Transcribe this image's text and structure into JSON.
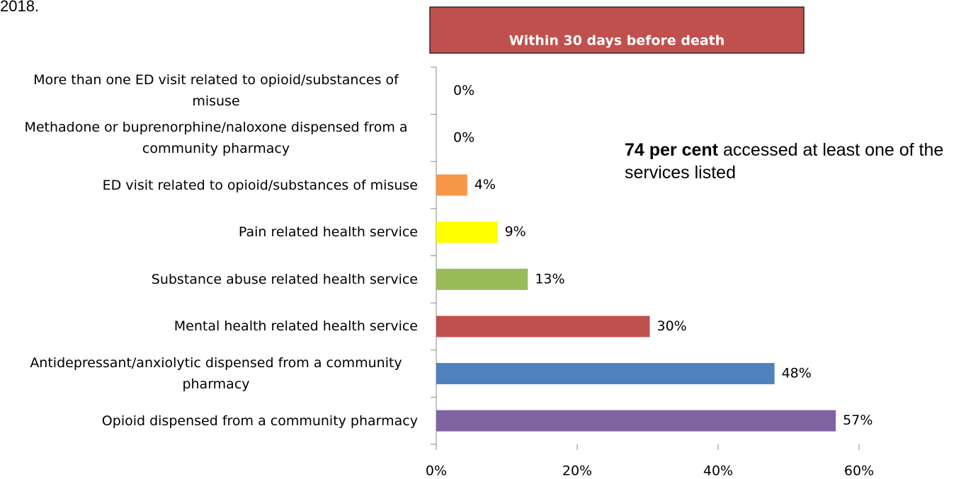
{
  "chart_data": {
    "type": "barh",
    "caption_fragment": "2018.",
    "header": "Within 30 days before death",
    "annotation": {
      "bold": "74 per cent",
      "rest": "accessed at least one of the services listed"
    },
    "categories": [
      "More than one ED visit related to opioid/substances of misuse",
      "Methadone or buprenorphine/naloxone dispensed from a community pharmacy",
      "ED visit related to opioid/substances of misuse",
      "Pain related health service",
      "Substance abuse related health service",
      "Mental health related health service",
      "Antidepressant/anxiolytic dispensed from a community pharmacy",
      "Opioid dispensed from a community pharmacy"
    ],
    "values": [
      0,
      0,
      4.4,
      8.7,
      13,
      30.3,
      48,
      56.7
    ],
    "value_labels": [
      "0%",
      "0%",
      "4%",
      "9%",
      "13%",
      "30%",
      "48%",
      "57%"
    ],
    "colors": [
      "#4f81bd",
      "#4f81bd",
      "#f79646",
      "#ffff00",
      "#9bbb59",
      "#c0504d",
      "#4f81bd",
      "#8064a2"
    ],
    "xlim": [
      0,
      60
    ],
    "xticks": [
      {
        "value": 0,
        "label": "0%"
      },
      {
        "value": 20,
        "label": "20%"
      },
      {
        "value": 40,
        "label": "40%"
      },
      {
        "value": 60,
        "label": "60%"
      }
    ]
  }
}
